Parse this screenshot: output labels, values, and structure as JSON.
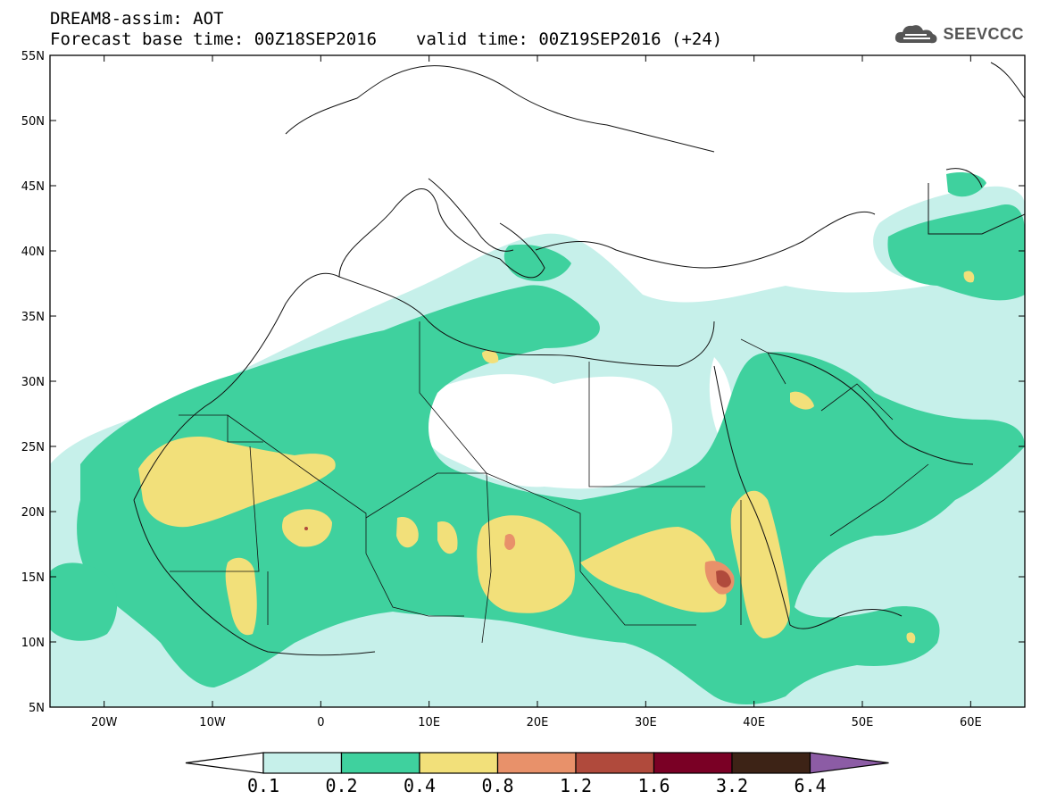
{
  "header": {
    "title": "DREAM8-assim: AOT",
    "base_time": "Forecast base time: 00Z18SEP2016",
    "valid_time": "valid time: 00Z19SEP2016 (+24)"
  },
  "logo": {
    "text": "SEEVCCC",
    "icon": "cloud-icon"
  },
  "map": {
    "lon_range": [
      -25,
      65
    ],
    "lat_range": [
      5,
      55
    ],
    "lon_ticks": [
      "20W",
      "10W",
      "0",
      "10E",
      "20E",
      "30E",
      "40E",
      "50E",
      "60E"
    ],
    "lat_ticks": [
      "55N",
      "50N",
      "45N",
      "40N",
      "35N",
      "30N",
      "25N",
      "20N",
      "15N",
      "10N",
      "5N"
    ],
    "variable": "AOT"
  },
  "colorbar": {
    "levels": [
      "0.1",
      "0.2",
      "0.4",
      "0.8",
      "1.2",
      "1.6",
      "3.2",
      "6.4"
    ],
    "colors": [
      "#ffffff",
      "#c6f0ea",
      "#3fd19e",
      "#f2e07a",
      "#e8916a",
      "#b04a3c",
      "#7a0025",
      "#3d2316",
      "#8c5ca5"
    ]
  }
}
